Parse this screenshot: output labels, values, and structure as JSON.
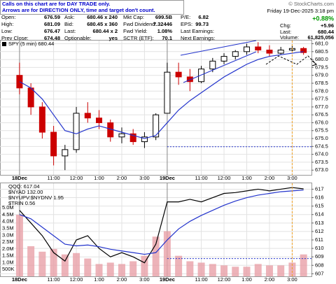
{
  "note": [
    "Calls on this chart are for DAY TRADE only.",
    "Arrows are for DIRECTION ONLY, time and target don't count."
  ],
  "credit": "© StockCharts.com",
  "quote": {
    "rows": [
      [
        [
          "Open:",
          "676.59"
        ],
        [
          "Ask:",
          "680.46 x 240"
        ],
        [
          "Mkt Cap:",
          "699.5B"
        ],
        [
          "P/E:",
          "6.82"
        ]
      ],
      [
        [
          "High:",
          "681.09"
        ],
        [
          "Bid:",
          "680.45 x 360"
        ],
        [
          "Fwd Dividend:",
          "7.32446"
        ],
        [
          "EPS:",
          "99.73"
        ]
      ],
      [
        [
          "Low:",
          "676.47"
        ],
        [
          "Last:",
          "680.44 x 2"
        ],
        [
          "Fwd Yield:",
          "1.08%"
        ],
        [
          "Last Earnings:"
        ]
      ],
      [
        [
          "Prev Close:",
          "674.48"
        ],
        [
          "Optionable:",
          "yes"
        ],
        [
          "SCTR (ETF):",
          "70.1"
        ],
        [
          "Next Earnings:"
        ]
      ]
    ]
  },
  "status": {
    "date": "Friday 19-Dec-2025 3:18 pm",
    "change_pct": "+0.88%",
    "change": [
      "Chg:",
      "+5.96"
    ],
    "last": [
      "Last:",
      "680.44"
    ],
    "volume": [
      "Volume:",
      "61,825,056"
    ]
  },
  "chart_data": [
    {
      "type": "candlestick",
      "legend": "SPY (5 min) 680.44",
      "up_color": "#000000",
      "down_color": "#cc0000",
      "ma_color": "#2233cc",
      "x": [
        0,
        1,
        2,
        3,
        4,
        5,
        6,
        7,
        8,
        9,
        10,
        11,
        12,
        13,
        14,
        15,
        16,
        17,
        18,
        19,
        20,
        21,
        22,
        23,
        24,
        25
      ],
      "open": [
        679.0,
        678.2,
        677.0,
        675.4,
        673.9,
        674.3,
        676.6,
        676.3,
        676.0,
        675.1,
        675.3,
        674.8,
        675.1,
        676.6,
        679.2,
        678.9,
        678.6,
        679.4,
        679.9,
        680.2,
        680.5,
        680.8,
        680.6,
        680.4,
        680.6,
        680.7
      ],
      "high": [
        679.8,
        678.5,
        677.3,
        675.8,
        674.6,
        677.0,
        677.3,
        676.8,
        676.2,
        675.7,
        675.6,
        675.4,
        676.6,
        679.8,
        679.8,
        679.4,
        679.6,
        680.1,
        680.4,
        680.6,
        681.0,
        681.1,
        680.9,
        680.8,
        680.9,
        680.8
      ],
      "low": [
        677.8,
        676.5,
        675.0,
        673.3,
        673.0,
        674.1,
        676.0,
        675.6,
        674.8,
        674.7,
        674.6,
        674.4,
        674.9,
        676.6,
        678.4,
        678.0,
        678.5,
        679.2,
        679.7,
        680.0,
        680.3,
        680.4,
        680.2,
        680.3,
        680.5,
        680.3
      ],
      "close": [
        678.2,
        677.0,
        675.4,
        673.9,
        674.3,
        676.6,
        676.3,
        676.0,
        675.1,
        675.3,
        674.8,
        675.1,
        676.5,
        679.2,
        678.9,
        678.6,
        679.4,
        679.9,
        680.2,
        680.5,
        680.8,
        680.6,
        680.4,
        680.6,
        680.7,
        680.44
      ],
      "ma": [
        678.6,
        678.2,
        677.5,
        676.5,
        675.5,
        675.3,
        675.6,
        675.8,
        675.6,
        675.4,
        675.2,
        675.0,
        675.2,
        676.0,
        676.8,
        677.4,
        677.9,
        678.4,
        678.9,
        679.3,
        679.7,
        680.0,
        680.2,
        680.3,
        680.4,
        680.5
      ],
      "ref_line": 674.48,
      "marker_x": 24,
      "xlim": [
        -1.72,
        25.7
      ],
      "ylim": [
        672.7,
        681.2
      ],
      "yticks": [
        {
          "value": 673,
          "label": "673.0"
        },
        {
          "value": 673.5,
          "label": "673.5"
        },
        {
          "value": 674,
          "label": "674.0"
        },
        {
          "value": 674.5,
          "label": "674.5"
        },
        {
          "value": 675,
          "label": "675.0"
        },
        {
          "value": 675.5,
          "label": "675.5"
        },
        {
          "value": 676,
          "label": "676.0"
        },
        {
          "value": 676.5,
          "label": "676.5"
        },
        {
          "value": 677,
          "label": "677.0"
        },
        {
          "value": 677.5,
          "label": "677.5"
        },
        {
          "value": 678,
          "label": "678.0"
        },
        {
          "value": 678.5,
          "label": "678.5"
        },
        {
          "value": 679,
          "label": "679.0"
        },
        {
          "value": 679.5,
          "label": "679.5"
        },
        {
          "value": 680,
          "label": "680.0"
        },
        {
          "value": 680.5,
          "label": "680.5"
        },
        {
          "value": 681,
          "label": "681.0"
        }
      ],
      "xticks": [
        {
          "value": 0,
          "label": "18Dec"
        },
        {
          "value": 3,
          "label": "11:00"
        },
        {
          "value": 5,
          "label": "12:00"
        },
        {
          "value": 7,
          "label": "1:00"
        },
        {
          "value": 9,
          "label": "2:00"
        },
        {
          "value": 11,
          "label": "3:00"
        },
        {
          "value": 13,
          "label": "19Dec"
        },
        {
          "value": 16,
          "label": "11:00"
        },
        {
          "value": 18,
          "label": "12:00"
        },
        {
          "value": 20,
          "label": "1:00"
        },
        {
          "value": 22,
          "label": "2:00"
        },
        {
          "value": 24,
          "label": "3:00"
        }
      ],
      "grid": true
    },
    {
      "type": "line",
      "legend": [
        "QQQ: 617.04",
        "$NYAD 132.00",
        "$NYUPV:$NYDNV 1.95",
        "$TRIN 0.56"
      ],
      "x": [
        0,
        1,
        2,
        3,
        4,
        5,
        6,
        7,
        8,
        9,
        10,
        11,
        12,
        13,
        14,
        15,
        16,
        17,
        18,
        19,
        20,
        21,
        22,
        23,
        24,
        25
      ],
      "series": [
        {
          "color": "#000000",
          "values": [
            614.5,
            613,
            611.5,
            609.5,
            608.5,
            611,
            611.5,
            610,
            609,
            609.5,
            609,
            608.3,
            610.5,
            615.5,
            615.5,
            615.8,
            615.5,
            616,
            616.5,
            616.6,
            616.8,
            617,
            616.8,
            617,
            617.2,
            617.04
          ]
        },
        {
          "color": "#2233cc",
          "values": [
            614,
            613.5,
            612.5,
            611.5,
            610.5,
            610.3,
            610.4,
            610.2,
            609.9,
            609.7,
            609.5,
            609.3,
            609.5,
            611,
            612.3,
            613.2,
            613.9,
            614.5,
            615.1,
            615.6,
            616,
            616.3,
            616.5,
            616.7,
            616.8,
            616.9
          ]
        },
        {
          "axis": "y2",
          "color": "#e8a0a8",
          "values": [
            4500000,
            2200000,
            1800000,
            2000000,
            1600000,
            1700000,
            1300000,
            900000,
            1000000,
            900000,
            1100000,
            1500000,
            2900000,
            3300000,
            1500000,
            1100000,
            1000000,
            900000,
            800000,
            700000,
            700000,
            900000,
            800000,
            800000,
            1000000,
            1600000
          ]
        }
      ],
      "ref_line": 608.8,
      "marker_x": 24,
      "xlim": [
        -1.72,
        25.7
      ],
      "ylim": [
        606.7,
        617.7
      ],
      "y2lim": [
        0,
        6800000
      ],
      "yticks": [
        607,
        608,
        609,
        610,
        611,
        612,
        613,
        614,
        615,
        616,
        617
      ],
      "y2ticks": [
        {
          "value": 500000,
          "label": "500K"
        },
        {
          "value": 1000000,
          "label": "1.0M"
        },
        {
          "value": 1500000,
          "label": "1.5M"
        },
        {
          "value": 2000000,
          "label": "2.0M"
        },
        {
          "value": 2500000,
          "label": "2.5M"
        },
        {
          "value": 3000000,
          "label": "3.0M"
        },
        {
          "value": 3500000,
          "label": "3.5M"
        },
        {
          "value": 4000000,
          "label": "4.0M"
        },
        {
          "value": 4500000,
          "label": "4.5M"
        },
        {
          "value": 5000000,
          "label": "5.0M"
        }
      ],
      "xticks": [
        {
          "value": 0,
          "label": "18Dec"
        },
        {
          "value": 3,
          "label": "11:00"
        },
        {
          "value": 5,
          "label": "12:00"
        },
        {
          "value": 7,
          "label": "1:00"
        },
        {
          "value": 9,
          "label": "2:00"
        },
        {
          "value": 11,
          "label": "3:00"
        },
        {
          "value": 13,
          "label": "19Dec"
        },
        {
          "value": 16,
          "label": "11:00"
        },
        {
          "value": 18,
          "label": "12:00"
        },
        {
          "value": 20,
          "label": "1:00"
        },
        {
          "value": 22,
          "label": "2:00"
        },
        {
          "value": 24,
          "label": "3:00"
        }
      ],
      "grid": true
    }
  ]
}
